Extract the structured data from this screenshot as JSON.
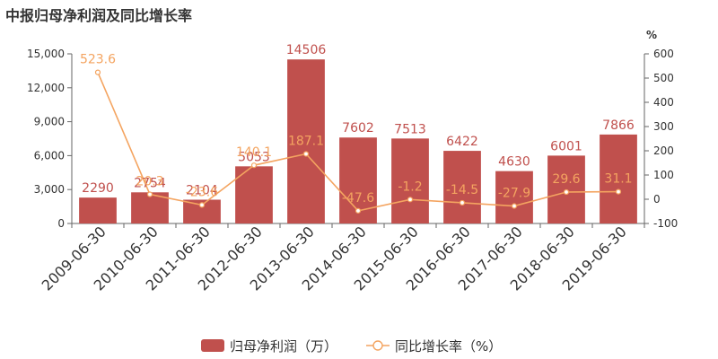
{
  "chart_data": {
    "type": "bar",
    "title": "中报归母净利润及同比增长率",
    "categories": [
      "2009-06-30",
      "2010-06-30",
      "2011-06-30",
      "2012-06-30",
      "2013-06-30",
      "2014-06-30",
      "2015-06-30",
      "2016-06-30",
      "2017-06-30",
      "2018-06-30",
      "2019-06-30"
    ],
    "series": [
      {
        "name": "归母净利润（万）",
        "type": "bar",
        "axis": "left",
        "values": [
          2290,
          2754,
          2104,
          5053,
          14506,
          7602,
          7513,
          6422,
          4630,
          6001,
          7866
        ],
        "labels": [
          "2290",
          "2754",
          "2104",
          "5053",
          "14506",
          "7602",
          "7513",
          "6422",
          "4630",
          "6001",
          "7866"
        ]
      },
      {
        "name": "同比增长率（%）",
        "type": "line",
        "axis": "right",
        "values": [
          523.6,
          20.3,
          -23.6,
          140.1,
          187.1,
          -47.6,
          -1.2,
          -14.5,
          -27.9,
          29.6,
          31.1
        ],
        "labels": [
          "523.6",
          "20.3",
          "-23.6",
          "140.1",
          "187.1",
          "-47.6",
          "-1.2",
          "-14.5",
          "-27.9",
          "29.6",
          "31.1"
        ]
      }
    ],
    "yleft": {
      "lim": [
        0,
        15000
      ],
      "ticks": [
        "0",
        "3,000",
        "6,000",
        "9,000",
        "12,000",
        "15,000"
      ],
      "tick_values": [
        0,
        3000,
        6000,
        9000,
        12000,
        15000
      ]
    },
    "yright": {
      "label": "%",
      "lim": [
        -100,
        600
      ],
      "ticks": [
        "-100",
        "0",
        "100",
        "200",
        "300",
        "400",
        "500",
        "600"
      ],
      "tick_values": [
        -100,
        0,
        100,
        200,
        300,
        400,
        500,
        600
      ]
    },
    "grid": false,
    "legend_position": "bottom-center",
    "colors": {
      "bar": "#c0504d",
      "bar_label": "#c0504d",
      "line": "#f4a460",
      "line_label": "#f4a460",
      "axis": "#666666",
      "text": "#333333"
    }
  }
}
